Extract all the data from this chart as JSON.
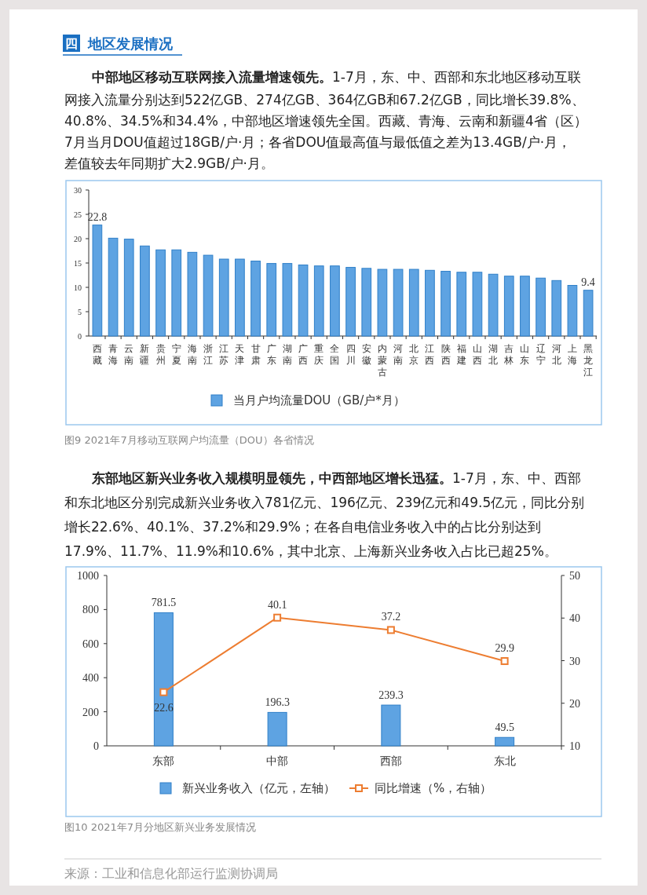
{
  "chart_data": [
    {
      "type": "bar",
      "title": "图9 2021年7月移动互联网户均流量（DOU）各省情况",
      "annotations": [
        "四",
        "地区发展情况",
        "中部地区移动互联网接入流量增速领先。",
        "1-7月，东、中、西部和东北地区移动互联",
        "网接入流量分别达到522亿GB、274亿GB、364亿GB和67.2亿GB，同比增长39.8%、",
        "40.8%、34.5%和34.4%，中部地区增速领先全国。西藏、青海、云南和新疆4省（区）",
        "7月当月DOU值超过18GB/户·月；各省DOU值最高值与最低值之差为13.4GB/户·月，",
        "差值较去年同期扩大2.9GB/户·月。"
      ],
      "categories": [
        "西藏",
        "青海",
        "云南",
        "新疆",
        "贵州",
        "宁夏",
        "海南",
        "浙江",
        "江苏",
        "天津",
        "甘肃",
        "广东",
        "湖南",
        "广西",
        "重庆",
        "全国",
        "四川",
        "安徽",
        "内蒙古",
        "河南",
        "北京",
        "江西",
        "陕西",
        "福建",
        "山西",
        "湖北",
        "吉林",
        "山东",
        "辽宁",
        "河北",
        "上海",
        "黑龙江"
      ],
      "series": [
        {
          "name": "当月户均流量DOU（GB/户*月）",
          "color": "#5ea3e2",
          "values": [
            22.8,
            20.1,
            19.9,
            18.5,
            17.7,
            17.7,
            17.2,
            16.6,
            15.8,
            15.8,
            15.4,
            14.9,
            14.9,
            14.6,
            14.4,
            14.4,
            14.1,
            13.9,
            13.7,
            13.7,
            13.7,
            13.5,
            13.3,
            13.1,
            13.1,
            12.7,
            12.3,
            12.3,
            11.9,
            11.4,
            10.4,
            9.4
          ],
          "value_labels": [
            "22.8",
            null,
            null,
            null,
            null,
            null,
            null,
            null,
            null,
            null,
            null,
            null,
            null,
            null,
            null,
            null,
            null,
            null,
            null,
            null,
            null,
            null,
            null,
            null,
            null,
            null,
            null,
            null,
            null,
            null,
            null,
            "9.4"
          ]
        }
      ],
      "ylim": [
        0,
        30
      ],
      "yticks": [
        0,
        5,
        10,
        15,
        20,
        25,
        30
      ],
      "legend": "bottom"
    },
    {
      "type": "bar",
      "title": "图10 2021年7月分地区新兴业务发展情况",
      "annotations": [
        "东部地区新兴业务收入规模明显领先，中西部地区增长迅猛。",
        "1-7月，东、中、西部",
        "和东北地区分别完成新兴业务收入781亿元、196亿元、239亿元和49.5亿元，同比分别",
        "增长22.6%、40.1%、37.2%和29.9%；在各自电信业务收入中的占比分别达到",
        "17.9%、11.7%、11.9%和10.6%，其中北京、上海新兴业务收入占比已超25%。",
        "来源：工业和信息化部运行监测协调局"
      ],
      "categories": [
        "东部",
        "中部",
        "西部",
        "东北"
      ],
      "series": [
        {
          "name": "新兴业务收入（亿元，左轴）",
          "color": "#5ea3e2",
          "values": [
            781.5,
            196.3,
            239.3,
            49.5
          ]
        },
        {
          "name": "同比增速（%，右轴）",
          "type": "line",
          "axis": "y2",
          "color": "#ed7d31",
          "marker": "square",
          "values": [
            22.6,
            40.1,
            37.2,
            29.9
          ]
        }
      ],
      "ylim": [
        0,
        1000
      ],
      "yticks": [
        0,
        200,
        400,
        600,
        800,
        1000
      ],
      "y2lim": [
        10,
        50
      ],
      "y2ticks": [
        10,
        20,
        30,
        40,
        50
      ],
      "data_labels": true,
      "legend": "bottom"
    }
  ]
}
